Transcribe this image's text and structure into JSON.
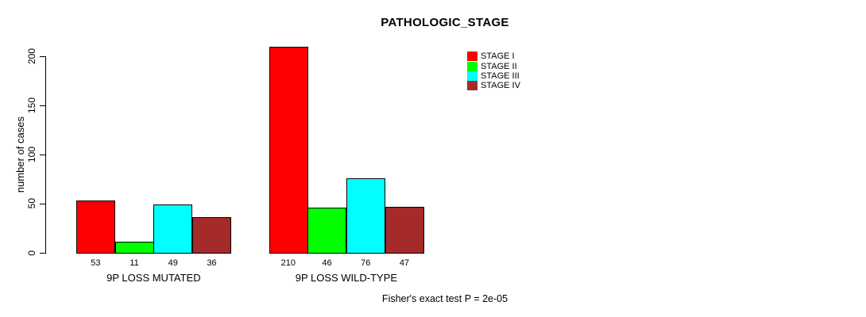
{
  "chart_data": {
    "type": "bar",
    "title": "PATHOLOGIC_STAGE",
    "ylabel": "number of cases",
    "xlabel": "",
    "ylim": [
      0,
      217
    ],
    "yticks": [
      0,
      50,
      100,
      150,
      200
    ],
    "grid": false,
    "legend_position": "top-right",
    "legend": [
      "STAGE I",
      "STAGE II",
      "STAGE III",
      "STAGE IV"
    ],
    "colors": [
      "#ff0000",
      "#00ff00",
      "#00ffff",
      "#a52a2a"
    ],
    "bar_outline_color": "#000000",
    "groups": [
      {
        "label": "9P LOSS MUTATED",
        "values": [
          53,
          11,
          49,
          36
        ]
      },
      {
        "label": "9P LOSS WILD-TYPE",
        "values": [
          210,
          46,
          76,
          47
        ]
      }
    ],
    "annotation": "Fisher's exact test P = 2e-05"
  }
}
